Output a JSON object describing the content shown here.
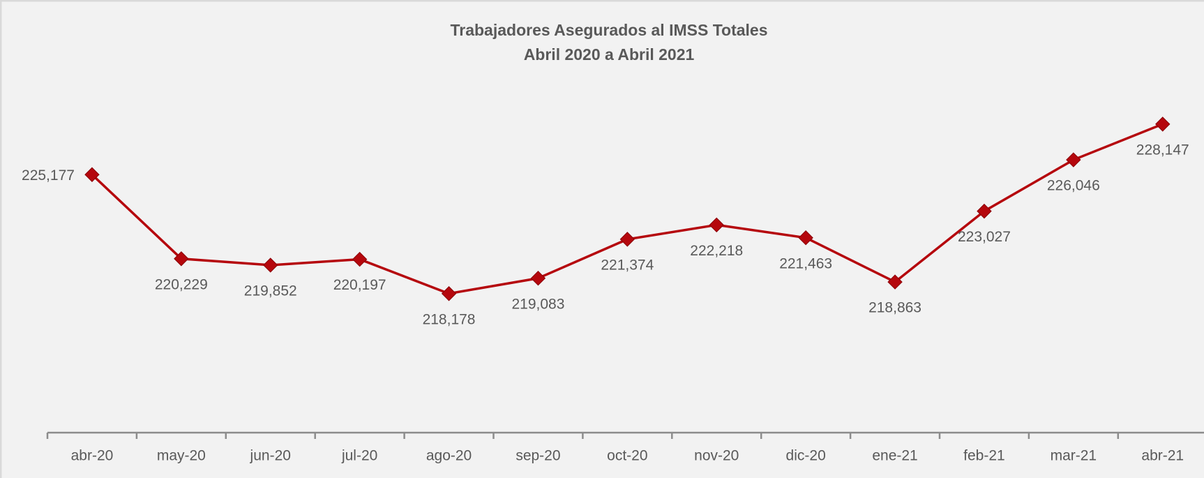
{
  "chart_data": {
    "type": "line",
    "title": "Trabajadores Asegurados al IMSS Totales",
    "subtitle": "Abril 2020 a Abril 2021",
    "categories": [
      "abr-20",
      "may-20",
      "jun-20",
      "jul-20",
      "ago-20",
      "sep-20",
      "oct-20",
      "nov-20",
      "dic-20",
      "ene-21",
      "feb-21",
      "mar-21",
      "abr-21"
    ],
    "series": [
      {
        "name": "Trabajadores Asegurados",
        "color": "#b5070d",
        "values": [
          225177,
          220229,
          219852,
          220197,
          218178,
          219083,
          221374,
          222218,
          221463,
          218863,
          223027,
          226046,
          228147
        ],
        "value_labels": [
          "225,177",
          "220,229",
          "219,852",
          "220,197",
          "218,178",
          "219,083",
          "221,374",
          "222,218",
          "221,463",
          "218,863",
          "223,027",
          "226,046",
          "228,147"
        ]
      }
    ],
    "ylim": [
      210000,
      232000
    ]
  }
}
